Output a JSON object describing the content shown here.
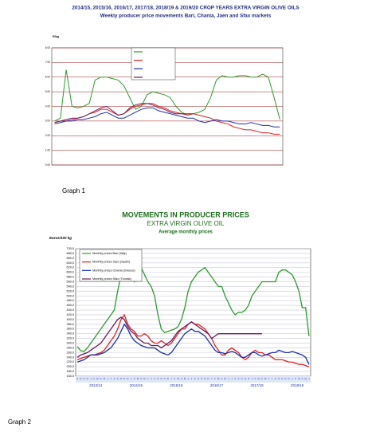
{
  "chart_data": [
    {
      "type": "line",
      "title": "2014/15, 2015/16, 2016/17, 2017/18, 2018/19 & 2019/20 CROP YEARS EXTRA VIRGIN OLIVE OILS",
      "subtitle": "Weekly producer price movements Bari, Chania, Jaen and Sfax markets",
      "y_label": "€/kg",
      "caption": "Graph 1",
      "ylim": [
        0,
        8
      ],
      "yticks": [
        {
          "value": 0,
          "label": "0.00"
        },
        {
          "value": 1,
          "label": "1.00"
        },
        {
          "value": 2,
          "label": "2.00"
        },
        {
          "value": 3,
          "label": "3.00"
        },
        {
          "value": 4,
          "label": "4.00"
        },
        {
          "value": 5,
          "label": "5.00"
        },
        {
          "value": 6,
          "label": "6.00"
        },
        {
          "value": 7,
          "label": "7.00"
        },
        {
          "value": 8,
          "label": "8.00"
        }
      ],
      "grid": true,
      "series": [
        {
          "color": "#2e9a2e",
          "values": [
            3.0,
            3.2,
            6.5,
            4.0,
            3.9,
            4.0,
            4.2,
            5.8,
            6.0,
            6.0,
            5.9,
            5.8,
            5.4,
            4.6,
            3.8,
            4.0,
            4.8,
            5.0,
            4.9,
            4.8,
            4.6,
            4.0,
            3.6,
            3.4,
            3.5,
            3.6,
            3.8,
            4.6,
            5.8,
            6.1,
            6.0,
            6.0,
            6.1,
            6.1,
            6.0,
            6.0,
            6.2,
            6.0,
            4.6,
            3.1
          ]
        },
        {
          "color": "#e02020",
          "values": [
            2.9,
            3.0,
            3.0,
            3.1,
            3.2,
            3.3,
            3.5,
            3.6,
            3.8,
            3.8,
            3.6,
            3.4,
            3.5,
            3.8,
            4.0,
            4.1,
            4.2,
            4.2,
            4.0,
            3.9,
            3.7,
            3.6,
            3.5,
            3.4,
            3.5,
            3.4,
            3.3,
            3.2,
            3.0,
            2.9,
            2.8,
            2.6,
            2.5,
            2.4,
            2.4,
            2.3,
            2.2,
            2.2,
            2.1,
            2.1
          ]
        },
        {
          "color": "#1a2fb0",
          "values": [
            2.8,
            2.9,
            3.0,
            3.0,
            3.1,
            3.1,
            3.2,
            3.3,
            3.5,
            3.6,
            3.4,
            3.2,
            3.2,
            3.4,
            3.6,
            3.8,
            3.9,
            3.9,
            3.7,
            3.6,
            3.5,
            3.4,
            3.3,
            3.2,
            3.2,
            3.0,
            2.9,
            3.0,
            3.1,
            3.0,
            3.0,
            2.9,
            2.8,
            2.8,
            2.9,
            2.8,
            2.7,
            2.7,
            2.6,
            2.6
          ]
        },
        {
          "color": "#6a1a5a",
          "values": [
            2.9,
            3.0,
            3.1,
            3.2,
            3.2,
            3.3,
            3.5,
            3.7,
            3.9,
            4.0,
            3.7,
            3.4,
            3.5,
            3.9,
            4.1,
            4.2,
            4.2,
            4.1,
            3.9,
            3.8,
            3.6,
            3.5,
            3.5,
            3.5,
            3.5,
            null,
            null,
            null,
            null,
            null,
            null,
            null,
            null,
            null,
            null,
            null,
            null,
            null,
            null,
            null
          ]
        }
      ]
    },
    {
      "type": "line",
      "title": "MOVEMENTS IN PRODUCER PRICES",
      "subtitle": "EXTRA VIRGIN OLIVE OIL",
      "subtitle2": "Average monthly prices",
      "y_label": "Euros/100 kg",
      "caption": "Graph 2",
      "ylim": [
        160,
        700
      ],
      "yticks": [
        {
          "value": 160,
          "label": "160,0"
        },
        {
          "value": 180,
          "label": "180,0"
        },
        {
          "value": 200,
          "label": "200,0"
        },
        {
          "value": 220,
          "label": "220,0"
        },
        {
          "value": 240,
          "label": "240,0"
        },
        {
          "value": 260,
          "label": "260,0"
        },
        {
          "value": 280,
          "label": "280,0"
        },
        {
          "value": 300,
          "label": "300,0"
        },
        {
          "value": 320,
          "label": "320,0"
        },
        {
          "value": 340,
          "label": "340,0"
        },
        {
          "value": 360,
          "label": "360,0"
        },
        {
          "value": 380,
          "label": "380,0"
        },
        {
          "value": 400,
          "label": "400,0"
        },
        {
          "value": 420,
          "label": "420,0"
        },
        {
          "value": 440,
          "label": "440,0"
        },
        {
          "value": 460,
          "label": "460,0"
        },
        {
          "value": 480,
          "label": "480,0"
        },
        {
          "value": 500,
          "label": "500,0"
        },
        {
          "value": 520,
          "label": "520,0"
        },
        {
          "value": 540,
          "label": "540,0"
        },
        {
          "value": 560,
          "label": "560,0"
        },
        {
          "value": 580,
          "label": "580,0"
        },
        {
          "value": 600,
          "label": "600,0"
        },
        {
          "value": 620,
          "label": "620,0"
        },
        {
          "value": 640,
          "label": "640,0"
        },
        {
          "value": 660,
          "label": "660,0"
        },
        {
          "value": 680,
          "label": "680,0"
        },
        {
          "value": 700,
          "label": "700,0"
        }
      ],
      "grid": true,
      "categories": [
        "S",
        "O",
        "N",
        "D",
        "J",
        "F",
        "M",
        "A",
        "M",
        "J",
        "J",
        "A",
        "S",
        "O",
        "N",
        "D",
        "J",
        "F",
        "M",
        "A",
        "M",
        "J",
        "J",
        "A",
        "S",
        "O",
        "N",
        "D",
        "J",
        "F",
        "M",
        "A",
        "M",
        "J",
        "J",
        "A",
        "S",
        "O",
        "N",
        "D",
        "J",
        "F",
        "M",
        "A",
        "M",
        "J",
        "J",
        "A",
        "S",
        "O",
        "N",
        "D",
        "J",
        "F",
        "M",
        "A",
        "M",
        "J",
        "J",
        "A",
        "S",
        "O",
        "N",
        "D",
        "J",
        "F",
        "M",
        "A",
        "M",
        "J"
      ],
      "crop_years": [
        "2013/14",
        "2014/15",
        "2015/16",
        "2016/17",
        "2017/18",
        "2018/19"
      ],
      "series": [
        {
          "name": "Monthly prices Bari (Italy)",
          "color": "#2e9a2e",
          "values": [
            285,
            268,
            265,
            280,
            300,
            320,
            340,
            360,
            380,
            400,
            420,
            440,
            520,
            590,
            610,
            600,
            580,
            560,
            600,
            620,
            590,
            560,
            540,
            500,
            420,
            360,
            345,
            350,
            355,
            360,
            370,
            400,
            450,
            520,
            560,
            580,
            600,
            610,
            620,
            600,
            580,
            560,
            540,
            540,
            500,
            470,
            440,
            420,
            430,
            430,
            440,
            460,
            500,
            520,
            540,
            560,
            560,
            560,
            560,
            560,
            600,
            610,
            610,
            600,
            590,
            560,
            520,
            450,
            450,
            330
          ]
        },
        {
          "name": "Monthly prices Jaén (Spain)",
          "color": "#e02020",
          "values": [
            230,
            235,
            240,
            245,
            250,
            250,
            255,
            260,
            270,
            290,
            310,
            330,
            360,
            400,
            420,
            380,
            360,
            350,
            330,
            330,
            340,
            330,
            310,
            300,
            300,
            310,
            300,
            290,
            300,
            320,
            340,
            360,
            360,
            380,
            390,
            380,
            380,
            370,
            360,
            340,
            320,
            290,
            270,
            250,
            250,
            270,
            280,
            270,
            260,
            240,
            230,
            240,
            260,
            270,
            260,
            260,
            250,
            250,
            240,
            230,
            230,
            230,
            225,
            220,
            220,
            215,
            210,
            210,
            205,
            200
          ]
        },
        {
          "name": "Monthly prices Chania (Greece)",
          "color": "#1a2fb0",
          "values": [
            220,
            225,
            230,
            240,
            250,
            250,
            250,
            255,
            260,
            270,
            280,
            300,
            320,
            350,
            380,
            360,
            330,
            310,
            300,
            290,
            285,
            280,
            280,
            280,
            270,
            260,
            255,
            250,
            260,
            280,
            300,
            320,
            340,
            350,
            360,
            350,
            350,
            340,
            330,
            310,
            290,
            270,
            260,
            260,
            255,
            260,
            265,
            260,
            250,
            240,
            240,
            250,
            260,
            260,
            250,
            245,
            250,
            255,
            260,
            260,
            270,
            265,
            260,
            260,
            265,
            260,
            255,
            250,
            240,
            210
          ]
        },
        {
          "name": "Monthly prices Sfax (Tunisia)",
          "color": "#6a1a5a",
          "values": [
            240,
            250,
            255,
            260,
            270,
            280,
            290,
            300,
            320,
            340,
            360,
            380,
            400,
            410,
            400,
            370,
            350,
            340,
            320,
            310,
            300,
            300,
            290,
            290,
            290,
            280,
            290,
            300,
            310,
            330,
            350,
            360,
            370,
            380,
            390,
            380,
            370,
            360,
            350,
            340,
            320,
            330,
            340,
            340,
            340,
            340,
            340,
            340,
            340,
            340,
            340,
            340,
            340,
            340,
            340,
            340,
            null,
            null,
            null,
            null,
            null,
            null,
            null,
            null,
            null,
            null,
            null,
            null,
            null,
            null
          ]
        }
      ]
    }
  ]
}
